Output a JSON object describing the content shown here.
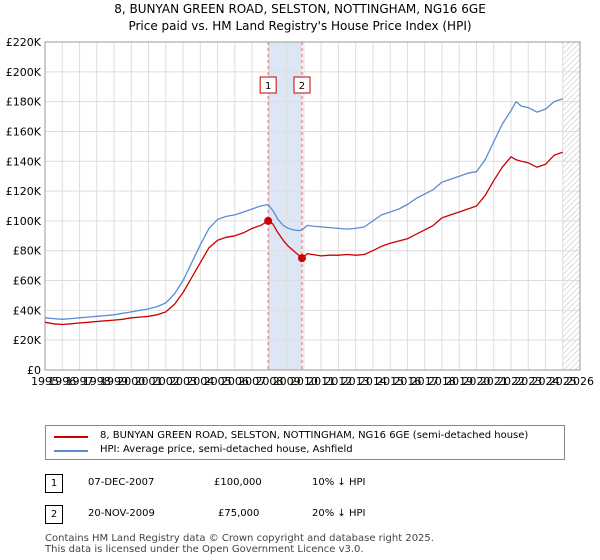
{
  "title_line1": "8, BUNYAN GREEN ROAD, SELSTON, NOTTINGHAM, NG16 6GE",
  "title_line2": "Price paid vs. HM Land Registry's House Price Index (HPI)",
  "colors": {
    "property": "#cc0000",
    "hpi": "#5b8cd6",
    "shade": "#dde6f5",
    "grid": "#dddddd",
    "vline": "#e06666"
  },
  "chart_data": {
    "type": "line",
    "xlim": [
      1995,
      2026
    ],
    "ylim": [
      0,
      220000
    ],
    "x_ticks": [
      "1995",
      "1996",
      "1997",
      "1998",
      "1999",
      "2000",
      "2001",
      "2002",
      "2003",
      "2004",
      "2005",
      "2006",
      "2007",
      "2008",
      "2009",
      "2010",
      "2011",
      "2012",
      "2013",
      "2014",
      "2015",
      "2016",
      "2017",
      "2018",
      "2019",
      "2020",
      "2021",
      "2022",
      "2023",
      "2024",
      "2025",
      "2026"
    ],
    "y_ticks": [
      {
        "value": 0,
        "label": "£0"
      },
      {
        "value": 20000,
        "label": "£20K"
      },
      {
        "value": 40000,
        "label": "£40K"
      },
      {
        "value": 60000,
        "label": "£60K"
      },
      {
        "value": 80000,
        "label": "£80K"
      },
      {
        "value": 100000,
        "label": "£100K"
      },
      {
        "value": 120000,
        "label": "£120K"
      },
      {
        "value": 140000,
        "label": "£140K"
      },
      {
        "value": 160000,
        "label": "£160K"
      },
      {
        "value": 180000,
        "label": "£180K"
      },
      {
        "value": 200000,
        "label": "£200K"
      },
      {
        "value": 220000,
        "label": "£220K"
      }
    ],
    "shaded_range": [
      2007.93,
      2009.89
    ],
    "hatched_from": 2025.0,
    "series": [
      {
        "name": "8, BUNYAN GREEN ROAD, SELSTON, NOTTINGHAM, NG16 6GE (semi-detached house)",
        "color": "#cc0000",
        "x": [
          1995,
          1995.5,
          1996,
          1996.5,
          1997,
          1997.5,
          1998,
          1998.5,
          1999,
          1999.5,
          2000,
          2000.5,
          2001,
          2001.5,
          2002,
          2002.5,
          2003,
          2003.5,
          2004,
          2004.5,
          2005,
          2005.5,
          2006,
          2006.5,
          2007,
          2007.5,
          2007.93,
          2008.2,
          2008.5,
          2008.8,
          2009.1,
          2009.4,
          2009.7,
          2009.89,
          2010.2,
          2010.5,
          2011,
          2011.5,
          2012,
          2012.5,
          2013,
          2013.5,
          2014,
          2014.5,
          2015,
          2015.5,
          2016,
          2016.5,
          2017,
          2017.5,
          2018,
          2018.5,
          2019,
          2019.5,
          2020,
          2020.5,
          2021,
          2021.5,
          2022,
          2022.3,
          2022.6,
          2023,
          2023.5,
          2024,
          2024.5,
          2025
        ],
        "y": [
          32000,
          31000,
          30500,
          31000,
          31500,
          32000,
          32500,
          33000,
          33500,
          34000,
          35000,
          35500,
          36000,
          37000,
          39000,
          44000,
          52000,
          62000,
          72000,
          82000,
          87000,
          89000,
          90000,
          92000,
          95000,
          97000,
          100000,
          98000,
          92000,
          87000,
          83000,
          80000,
          77000,
          75000,
          78000,
          77500,
          76500,
          77000,
          77000,
          77500,
          77000,
          77500,
          80000,
          83000,
          85000,
          86500,
          88000,
          91000,
          94000,
          97000,
          102000,
          104000,
          106000,
          108000,
          110000,
          117000,
          127000,
          136000,
          143000,
          141000,
          140000,
          139000,
          136000,
          138000,
          144000,
          146000
        ]
      },
      {
        "name": "HPI: Average price, semi-detached house, Ashfield",
        "color": "#5b8cd6",
        "x": [
          1995,
          1995.5,
          1996,
          1996.5,
          1997,
          1997.5,
          1998,
          1998.5,
          1999,
          1999.5,
          2000,
          2000.5,
          2001,
          2001.5,
          2002,
          2002.5,
          2003,
          2003.5,
          2004,
          2004.5,
          2005,
          2005.5,
          2006,
          2006.5,
          2007,
          2007.5,
          2007.93,
          2008.2,
          2008.5,
          2008.8,
          2009.1,
          2009.4,
          2009.7,
          2009.89,
          2010.2,
          2010.5,
          2011,
          2011.5,
          2012,
          2012.5,
          2013,
          2013.5,
          2014,
          2014.5,
          2015,
          2015.5,
          2016,
          2016.5,
          2017,
          2017.5,
          2018,
          2018.5,
          2019,
          2019.5,
          2020,
          2020.5,
          2021,
          2021.5,
          2022,
          2022.3,
          2022.6,
          2023,
          2023.5,
          2024,
          2024.5,
          2025
        ],
        "y": [
          35000,
          34500,
          34000,
          34500,
          35000,
          35500,
          36000,
          36500,
          37000,
          38000,
          39000,
          40000,
          41000,
          42500,
          45000,
          51000,
          60000,
          72000,
          84000,
          95000,
          101000,
          103000,
          104000,
          106000,
          108000,
          110000,
          111000,
          107000,
          101000,
          97000,
          95000,
          94000,
          93500,
          94000,
          97000,
          96500,
          96000,
          95500,
          95000,
          94500,
          95000,
          96000,
          100000,
          104000,
          106000,
          108000,
          111000,
          115000,
          118000,
          121000,
          126000,
          128000,
          130000,
          132000,
          133000,
          141000,
          153000,
          165000,
          174000,
          180000,
          177000,
          176000,
          173000,
          175000,
          180000,
          182000
        ]
      }
    ],
    "annotations": [
      {
        "label": "1",
        "x": 2007.93,
        "y": 100000
      },
      {
        "label": "2",
        "x": 2009.89,
        "y": 75000
      }
    ]
  },
  "legend": [
    {
      "label": "8, BUNYAN GREEN ROAD, SELSTON, NOTTINGHAM, NG16 6GE (semi-detached house)",
      "color": "#cc0000"
    },
    {
      "label": "HPI: Average price, semi-detached house, Ashfield",
      "color": "#5b8cd6"
    }
  ],
  "transactions": [
    {
      "num": "1",
      "date": "07-DEC-2007",
      "price": "£100,000",
      "hpi": "10% ↓ HPI"
    },
    {
      "num": "2",
      "date": "20-NOV-2009",
      "price": "£75,000",
      "hpi": "20% ↓ HPI"
    }
  ],
  "footer_line1": "Contains HM Land Registry data © Crown copyright and database right 2025.",
  "footer_line2": "This data is licensed under the Open Government Licence v3.0."
}
